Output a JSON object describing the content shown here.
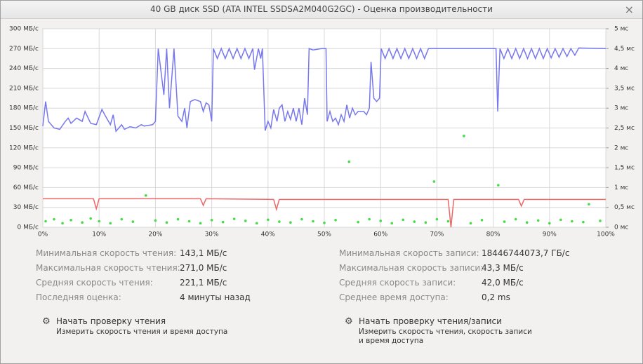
{
  "window": {
    "title": "40 GB диск SSD (ATA INTEL SSDSA2M040G2GC) - Оценка производительности",
    "close": "×"
  },
  "chart_data": {
    "type": "line",
    "xlim": [
      0,
      100
    ],
    "xticks": [
      {
        "value": 0,
        "label": "0%"
      },
      {
        "value": 10,
        "label": "10%"
      },
      {
        "value": 20,
        "label": "20%"
      },
      {
        "value": 30,
        "label": "30%"
      },
      {
        "value": 40,
        "label": "40%"
      },
      {
        "value": 50,
        "label": "50%"
      },
      {
        "value": 60,
        "label": "60%"
      },
      {
        "value": 70,
        "label": "70%"
      },
      {
        "value": 80,
        "label": "80%"
      },
      {
        "value": 90,
        "label": "90%"
      },
      {
        "value": 100,
        "label": "100%"
      }
    ],
    "ylim": [
      0,
      300
    ],
    "yticks": [
      {
        "value": 0,
        "label": "0 МБ/с"
      },
      {
        "value": 30,
        "label": "30 МБ/с"
      },
      {
        "value": 60,
        "label": "60 МБ/с"
      },
      {
        "value": 90,
        "label": "90 МБ/с"
      },
      {
        "value": 120,
        "label": "120 МБ/с"
      },
      {
        "value": 150,
        "label": "150 МБ/с"
      },
      {
        "value": 180,
        "label": "180 МБ/с"
      },
      {
        "value": 210,
        "label": "210 МБ/с"
      },
      {
        "value": 240,
        "label": "240 МБ/с"
      },
      {
        "value": 270,
        "label": "270 МБ/с"
      },
      {
        "value": 300,
        "label": "300 МБ/с"
      }
    ],
    "y2lim": [
      0,
      5
    ],
    "y2ticks": [
      {
        "value": 0,
        "label": "0 мс"
      },
      {
        "value": 0.5,
        "label": "0,5 мс"
      },
      {
        "value": 1,
        "label": "1 мс"
      },
      {
        "value": 1.5,
        "label": "1,5 мс"
      },
      {
        "value": 2,
        "label": "2 мс"
      },
      {
        "value": 2.5,
        "label": "2,5 мс"
      },
      {
        "value": 3,
        "label": "3 мс"
      },
      {
        "value": 3.5,
        "label": "3,5 мс"
      },
      {
        "value": 4,
        "label": "4 мс"
      },
      {
        "value": 4.5,
        "label": "4,5 мс"
      },
      {
        "value": 5,
        "label": "5 мс"
      }
    ],
    "grid": true,
    "series": [
      {
        "color": "#7777ee",
        "style": "line",
        "x": [
          0,
          0.5,
          1,
          2,
          3,
          4,
          4.5,
          5,
          6,
          7,
          7.5,
          8.5,
          9.5,
          10.5,
          11,
          12,
          12.5,
          13,
          14,
          14.5,
          15.5,
          16.5,
          17.5,
          18,
          19.5,
          20,
          20.5,
          21.5,
          22,
          22.5,
          23.3,
          24,
          24.7,
          25.2,
          25.6,
          26.2,
          27,
          28,
          28.5,
          29,
          29.5,
          30,
          30.3,
          31,
          31.7,
          32.4,
          33.1,
          33.8,
          34.5,
          35.2,
          35.9,
          36.6,
          37.3,
          37.6,
          38.3,
          38.7,
          39,
          39.5,
          40,
          40.5,
          41,
          41.6,
          42,
          42.5,
          43,
          43.5,
          44,
          44.5,
          45,
          45.5,
          46,
          46.5,
          47,
          47.3,
          48,
          49.5,
          50.3,
          50.5,
          51,
          51.5,
          52,
          52.5,
          53,
          53.5,
          54,
          54.5,
          55,
          55.5,
          56,
          56.5,
          57,
          57.5,
          58,
          58.3,
          58.8,
          59.3,
          59.8,
          60.1,
          60.8,
          61.5,
          62.2,
          62.9,
          63.6,
          64.3,
          65,
          65.7,
          66.4,
          67.1,
          67.8,
          68.5,
          75,
          80.5,
          80.8,
          81.2,
          81.9,
          82.6,
          83.3,
          84,
          84.7,
          85.4,
          86.1,
          86.8,
          87.5,
          88.2,
          88.9,
          89.6,
          90.3,
          91,
          91.7,
          92.4,
          93.1,
          93.8,
          94.5,
          95.2,
          100
        ],
        "values": [
          153,
          190,
          160,
          150,
          148,
          160,
          165,
          157,
          165,
          160,
          175,
          157,
          155,
          178,
          170,
          155,
          170,
          145,
          155,
          148,
          152,
          150,
          155,
          153,
          155,
          160,
          270,
          200,
          270,
          180,
          270,
          168,
          160,
          180,
          150,
          190,
          193,
          190,
          175,
          188,
          185,
          160,
          270,
          255,
          270,
          255,
          270,
          255,
          270,
          255,
          270,
          255,
          270,
          238,
          270,
          255,
          270,
          146,
          160,
          150,
          178,
          160,
          180,
          185,
          160,
          175,
          163,
          180,
          160,
          180,
          155,
          195,
          170,
          270,
          268,
          270,
          270,
          160,
          175,
          160,
          165,
          155,
          170,
          160,
          185,
          165,
          180,
          170,
          175,
          175,
          175,
          170,
          180,
          250,
          195,
          190,
          195,
          270,
          255,
          270,
          255,
          270,
          255,
          270,
          255,
          270,
          255,
          270,
          255,
          270,
          270,
          270,
          175,
          270,
          255,
          270,
          255,
          270,
          255,
          270,
          255,
          270,
          255,
          270,
          255,
          270,
          256,
          270,
          257,
          270,
          258,
          270,
          260,
          271,
          270
        ]
      },
      {
        "color": "#ee6666",
        "style": "line",
        "x": [
          0,
          9,
          9.5,
          10,
          28,
          28.5,
          29,
          41,
          41.5,
          42,
          72,
          72.5,
          73,
          84.5,
          85,
          85.5,
          100
        ],
        "values": [
          43,
          43,
          28,
          43,
          43,
          33,
          43,
          42,
          27,
          42,
          42,
          0,
          42,
          42,
          32,
          42,
          42
        ]
      },
      {
        "color": "#44dd44",
        "style": "dots",
        "axis": "y2",
        "x": [
          0.5,
          2,
          3.5,
          5,
          7,
          8.5,
          10,
          12,
          14,
          16,
          18.3,
          20,
          22,
          24,
          26,
          28,
          30,
          32,
          34,
          36,
          38,
          40,
          42,
          44,
          46,
          48,
          50,
          52,
          54.4,
          56,
          58,
          60,
          62,
          64,
          66,
          68,
          69.5,
          70,
          72,
          74.8,
          76,
          78,
          80.9,
          82,
          84,
          86,
          88,
          90,
          92,
          94,
          96,
          97,
          99
        ],
        "values": [
          0.15,
          0.2,
          0.1,
          0.18,
          0.12,
          0.22,
          0.15,
          0.1,
          0.2,
          0.14,
          0.8,
          0.17,
          0.12,
          0.2,
          0.15,
          0.1,
          0.18,
          0.13,
          0.21,
          0.16,
          0.1,
          0.19,
          0.14,
          0.12,
          0.2,
          0.15,
          0.11,
          0.18,
          1.65,
          0.13,
          0.2,
          0.16,
          0.1,
          0.19,
          0.14,
          0.12,
          1.15,
          0.2,
          0.15,
          2.3,
          0.1,
          0.18,
          1.06,
          0.14,
          0.2,
          0.12,
          0.17,
          0.1,
          0.19,
          0.15,
          0.13,
          0.58,
          0.16
        ]
      }
    ]
  },
  "stats": {
    "left": [
      [
        "Минимальная скорость чтения:",
        "143,1 МБ/с"
      ],
      [
        "Максимальная скорость чтения:",
        "271,0 МБ/с"
      ],
      [
        "Средняя скорость чтения:",
        "221,1 МБ/с"
      ],
      [
        "Последняя оценка:",
        "4 минуты назад"
      ]
    ],
    "right": [
      [
        "Минимальная скорость записи:",
        "18446744073,7 ГБ/с"
      ],
      [
        "Максимальная скорость записи:",
        "43,3 МБ/с"
      ],
      [
        "Средняя скорость записи:",
        "42,0 МБ/с"
      ],
      [
        "Среднее время доступа:",
        "0,2 ms"
      ]
    ]
  },
  "actions": [
    {
      "title": "Начать проверку чтения",
      "description": "Измерить скорость чтения и время доступа"
    },
    {
      "title": "Начать проверку чтения/записи",
      "description": "Измерить скорость чтения, скорость записи и время доступа"
    }
  ]
}
